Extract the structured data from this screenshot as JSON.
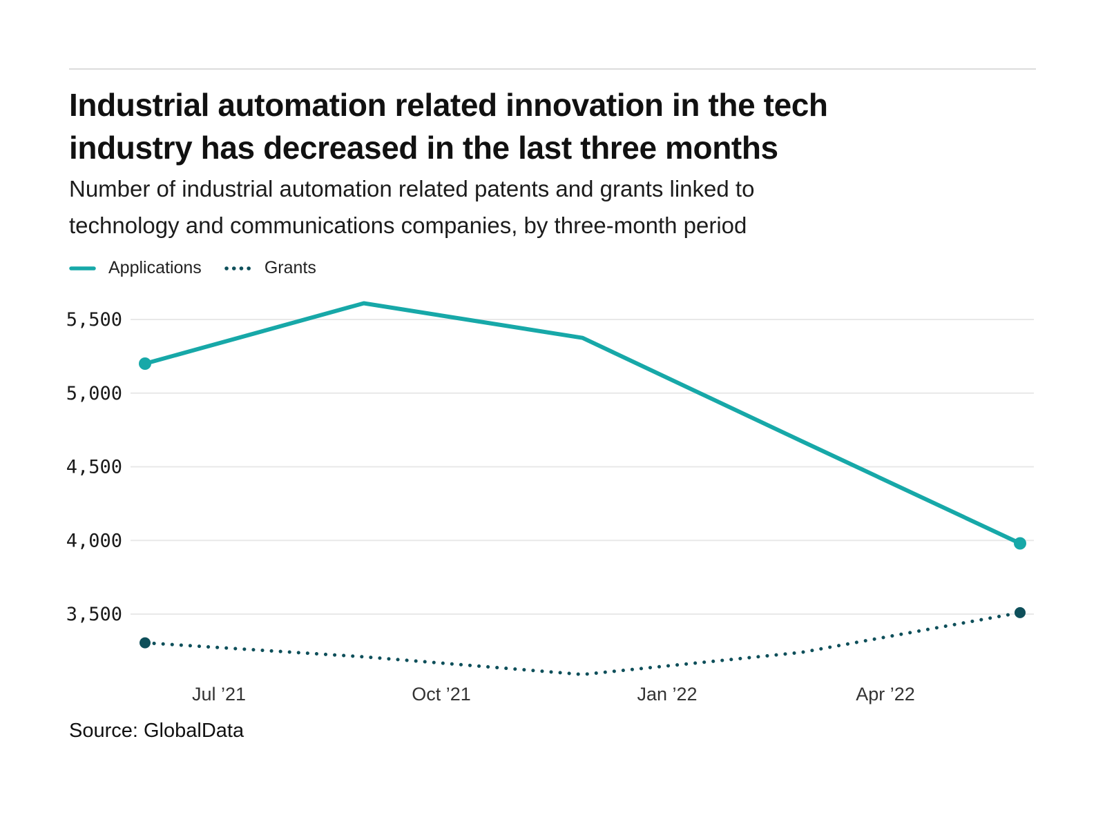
{
  "header": {
    "title_lines": [
      "Industrial automation related innovation in the tech",
      "industry has decreased in the last three months"
    ],
    "subtitle_lines": [
      "Number of industrial automation related patents and grants linked to",
      "technology and communications companies, by three-month period"
    ]
  },
  "chart_data": {
    "type": "line",
    "title": "Industrial automation related innovation in the tech industry has decreased in the last three months",
    "subtitle": "Number of industrial automation related patents and grants linked to technology and communications companies, by three-month period",
    "grid": "horizontal",
    "legend_position": "top-left",
    "x_tick_labels": [
      "Jul ’21",
      "Oct ’21",
      "Jan ’22",
      "Apr ’22"
    ],
    "y_ticks": [
      5500,
      5000,
      4500,
      4000,
      3500
    ],
    "y_tick_labels": [
      "5,500",
      "5,000",
      "4,500",
      "4,000",
      "3,500"
    ],
    "ylim": [
      3050,
      5650
    ],
    "series": [
      {
        "name": "Applications",
        "line_style": "solid",
        "color": "#17A8A8",
        "values": [
          5200,
          5610,
          5375,
          4675,
          3980
        ]
      },
      {
        "name": "Grants",
        "line_style": "dotted",
        "color": "#0E4F5A",
        "values": [
          3305,
          3210,
          3090,
          3240,
          3510
        ]
      }
    ]
  },
  "footer": {
    "source": "Source: GlobalData"
  }
}
